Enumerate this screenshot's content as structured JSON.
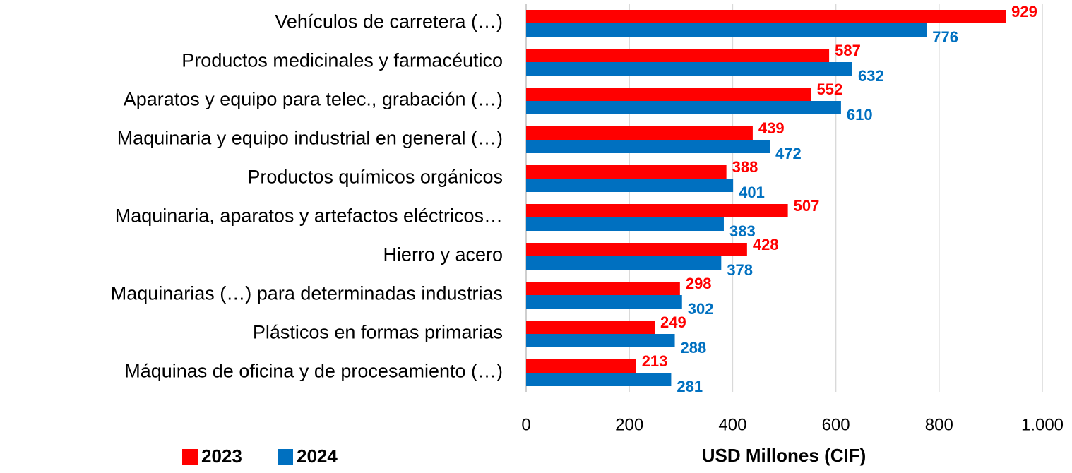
{
  "chart_data": {
    "type": "hbar",
    "categories": [
      "Vehículos de carretera (…)",
      "Productos medicinales y farmacéutico",
      "Aparatos y equipo para telec., grabación (…)",
      "Maquinaria y equipo industrial en general (…)",
      "Productos químicos orgánicos",
      "Maquinaria, aparatos y artefactos eléctricos…",
      "Hierro y acero",
      "Maquinarias (…) para determinadas industrias",
      "Plásticos en formas primarias",
      "Máquinas de oficina y de procesamiento (…)"
    ],
    "series": [
      {
        "name": "2023",
        "color": "#ff0000",
        "values": [
          929,
          587,
          552,
          439,
          388,
          507,
          428,
          298,
          249,
          213
        ]
      },
      {
        "name": "2024",
        "color": "#0070c0",
        "values": [
          776,
          632,
          610,
          472,
          401,
          383,
          378,
          302,
          288,
          281
        ]
      }
    ],
    "xlabel": "USD Millones (CIF)",
    "xlim": [
      0,
      1000
    ],
    "xticks": [
      0,
      200,
      400,
      600,
      800,
      {
        "value": 1000,
        "label": "1.000"
      }
    ],
    "grid": true,
    "legend": "bottom-left"
  }
}
